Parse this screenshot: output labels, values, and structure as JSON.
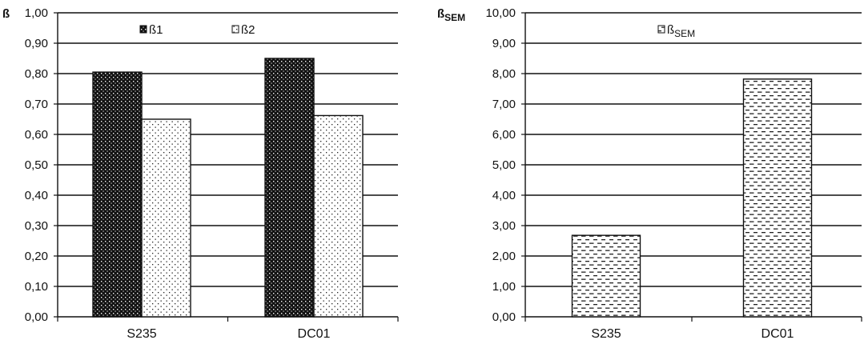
{
  "chart_data": [
    {
      "type": "bar",
      "ylabel": "ß",
      "categories": [
        "S235",
        "DC01"
      ],
      "series": [
        {
          "name": "ß1",
          "values": [
            0.805,
            0.85
          ],
          "pattern": "dense-dots"
        },
        {
          "name": "ß2",
          "values": [
            0.65,
            0.662
          ],
          "pattern": "sparse-dots"
        }
      ],
      "ylim": [
        0,
        1
      ],
      "yticks": [
        "0,00",
        "0,10",
        "0,20",
        "0,30",
        "0,40",
        "0,50",
        "0,60",
        "0,70",
        "0,80",
        "0,90",
        "1,00"
      ],
      "grid": true,
      "legend": "top-center"
    },
    {
      "type": "bar",
      "ylabel": "ßSEM",
      "ylabel_main": "ß",
      "ylabel_sub": "SEM",
      "categories": [
        "S235",
        "DC01"
      ],
      "series": [
        {
          "name": "ßSEM",
          "name_main": "ß",
          "name_sub": "SEM",
          "values": [
            2.68,
            7.82
          ],
          "pattern": "dashes"
        }
      ],
      "ylim": [
        0,
        10
      ],
      "yticks": [
        "0,00",
        "1,00",
        "2,00",
        "3,00",
        "4,00",
        "5,00",
        "6,00",
        "7,00",
        "8,00",
        "9,00",
        "10,00"
      ],
      "grid": true,
      "legend": "top-center"
    }
  ],
  "colors": {
    "line": "#111111",
    "background": "#ffffff"
  }
}
